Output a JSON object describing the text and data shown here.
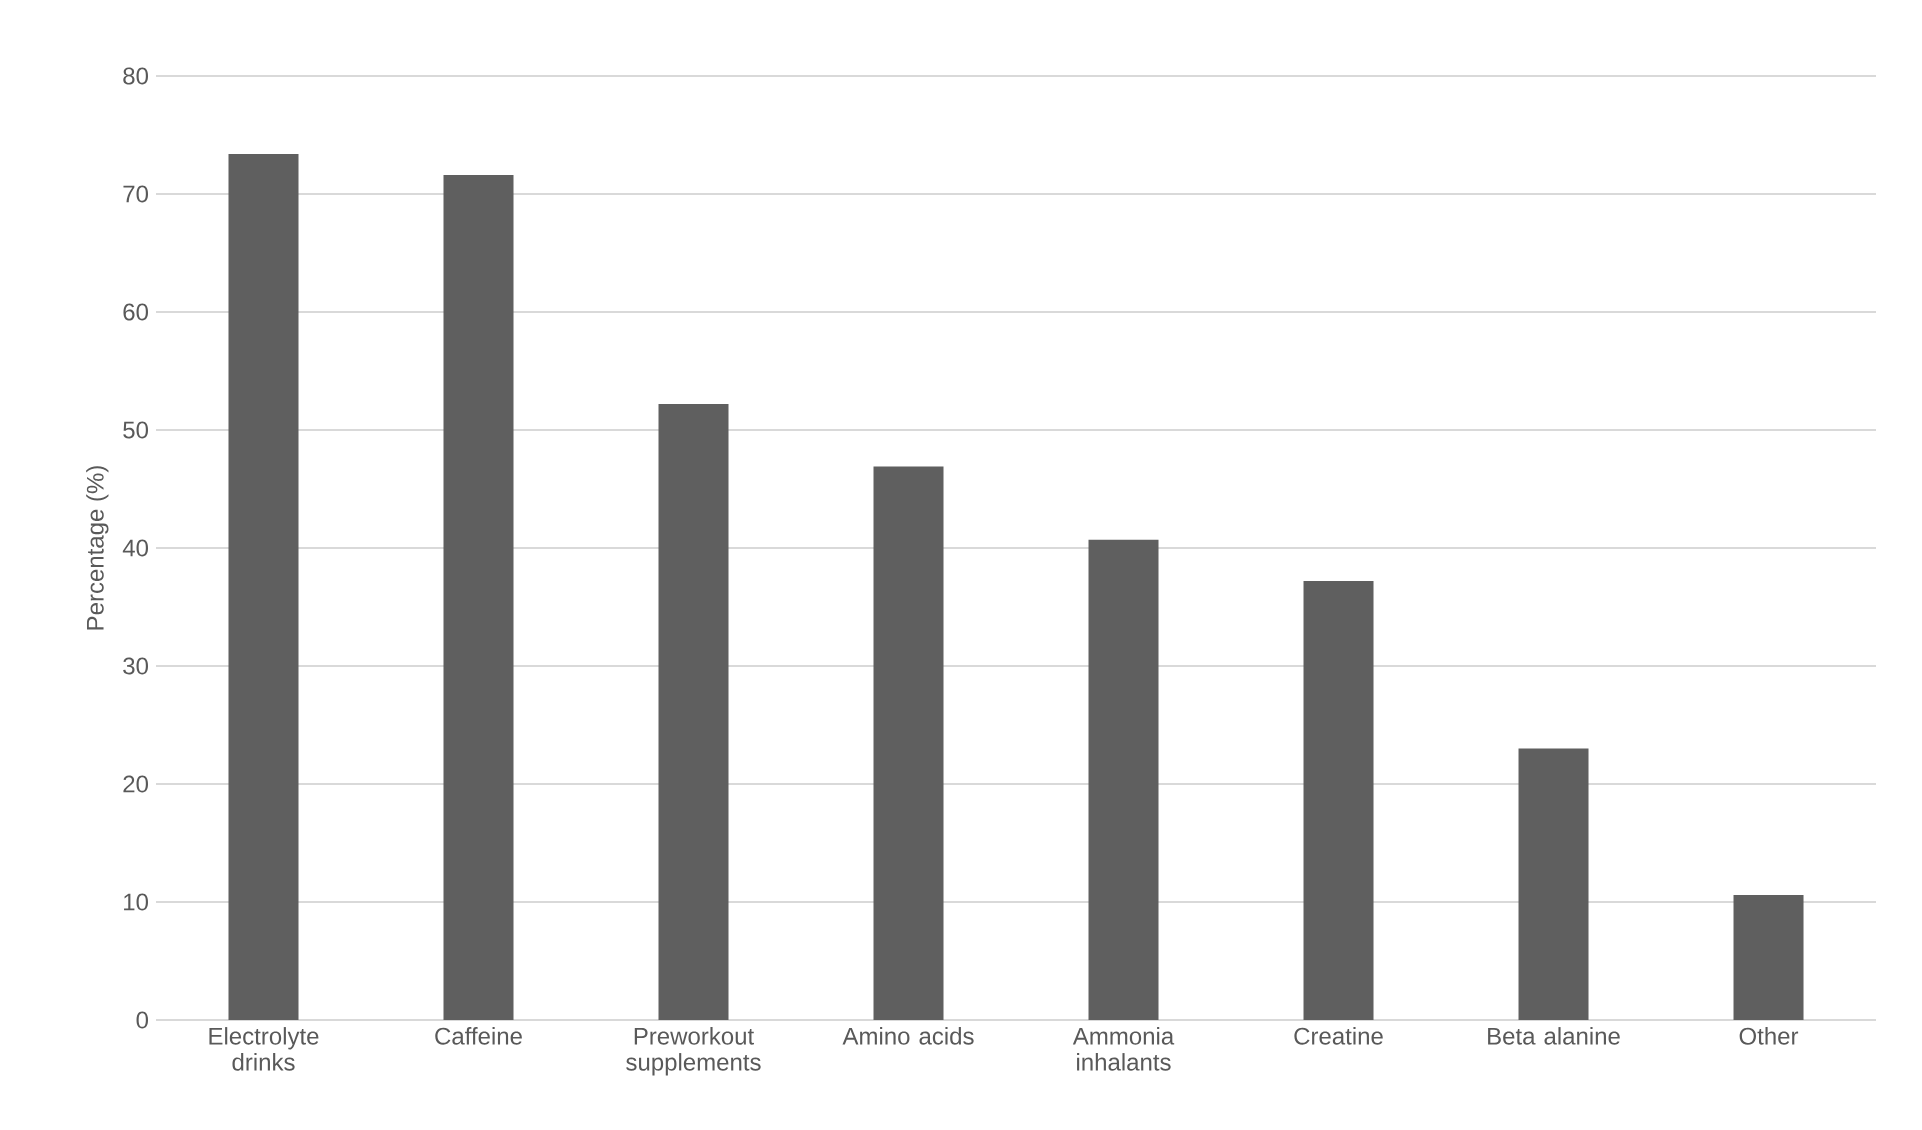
{
  "chart_data": {
    "type": "bar",
    "ylabel": "Percentage (%)",
    "categories": [
      "Electrolyte drinks",
      "Caffeine",
      "Preworkout supplements",
      "Amino acids",
      "Ammonia inhalants",
      "Creatine",
      "Beta alanine",
      "Other"
    ],
    "values": [
      73.4,
      71.6,
      52.2,
      46.9,
      40.7,
      37.2,
      23.0,
      10.6
    ],
    "color": "#5f5f5f",
    "ylim": [
      0,
      80
    ],
    "yticks": [
      0,
      10,
      20,
      30,
      40,
      50,
      60,
      70,
      80
    ],
    "grid": "y"
  }
}
